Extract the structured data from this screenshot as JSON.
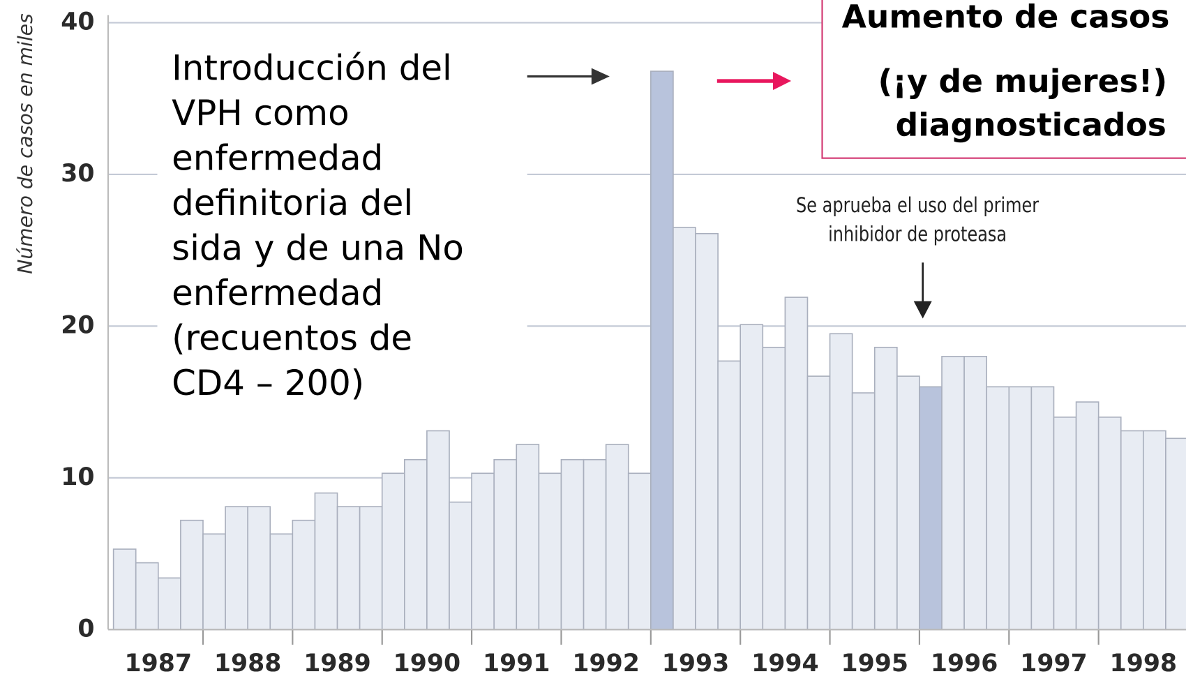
{
  "chart_data": {
    "type": "bar",
    "y_label": "Número de casos en miles",
    "categories": [
      "1987",
      "1988",
      "1989",
      "1990",
      "1991",
      "1992",
      "1993",
      "1994",
      "1995",
      "1996",
      "1997",
      "1998"
    ],
    "values": [
      [
        5.3,
        4.4,
        3.4,
        7.2
      ],
      [
        6.3,
        8.1,
        8.1,
        6.3
      ],
      [
        7.2,
        9.0,
        8.1,
        8.1
      ],
      [
        10.3,
        11.2,
        13.1,
        8.4
      ],
      [
        10.3,
        11.2,
        12.2,
        10.3
      ],
      [
        11.2,
        11.2,
        12.2,
        10.3
      ],
      [
        36.8,
        26.5,
        26.1,
        17.7
      ],
      [
        20.1,
        18.6,
        21.9,
        16.7
      ],
      [
        19.5,
        15.6,
        18.6,
        16.7
      ],
      [
        16.0,
        18.0,
        18.0,
        16.0
      ],
      [
        16.0,
        16.0,
        14.0,
        15.0
      ],
      [
        14.0,
        13.1,
        13.1,
        12.6
      ]
    ],
    "colors": [
      [
        "#e8ecf3",
        "#e8ecf3",
        "#e8ecf3",
        "#e8ecf3"
      ],
      [
        "#e8ecf3",
        "#e8ecf3",
        "#e8ecf3",
        "#e8ecf3"
      ],
      [
        "#e8ecf3",
        "#e8ecf3",
        "#e8ecf3",
        "#e8ecf3"
      ],
      [
        "#e8ecf3",
        "#e8ecf3",
        "#e8ecf3",
        "#e8ecf3"
      ],
      [
        "#e8ecf3",
        "#e8ecf3",
        "#e8ecf3",
        "#e8ecf3"
      ],
      [
        "#e8ecf3",
        "#e8ecf3",
        "#e8ecf3",
        "#e8ecf3"
      ],
      [
        "#b8c3dc",
        "#e8ecf3",
        "#e8ecf3",
        "#e8ecf3"
      ],
      [
        "#e8ecf3",
        "#e8ecf3",
        "#e8ecf3",
        "#e8ecf3"
      ],
      [
        "#e8ecf3",
        "#e8ecf3",
        "#e8ecf3",
        "#e8ecf3"
      ],
      [
        "#b8c3dc",
        "#e8ecf3",
        "#e8ecf3",
        "#e8ecf3"
      ],
      [
        "#e8ecf3",
        "#e8ecf3",
        "#e8ecf3",
        "#e8ecf3"
      ],
      [
        "#e8ecf3",
        "#e8ecf3",
        "#e8ecf3",
        "#e8ecf3"
      ]
    ],
    "ylim": [
      0,
      40
    ],
    "yticks": [
      0,
      10,
      20,
      30,
      40
    ],
    "grid": true,
    "annotations": [
      {
        "lines": [
          "Introducción del",
          "VPH como",
          "enfermedad",
          "definitoria del",
          "sida y de una No",
          "enfermedad",
          "(recuentos de",
          "CD4 – 200)"
        ]
      },
      {
        "lines": [
          "Se aprueba el uso del primer",
          "inhibidor de proteasa"
        ]
      },
      {
        "lines": [
          "Aumento de casos",
          "(¡y de mujeres!)",
          "diagnosticados"
        ]
      }
    ]
  }
}
